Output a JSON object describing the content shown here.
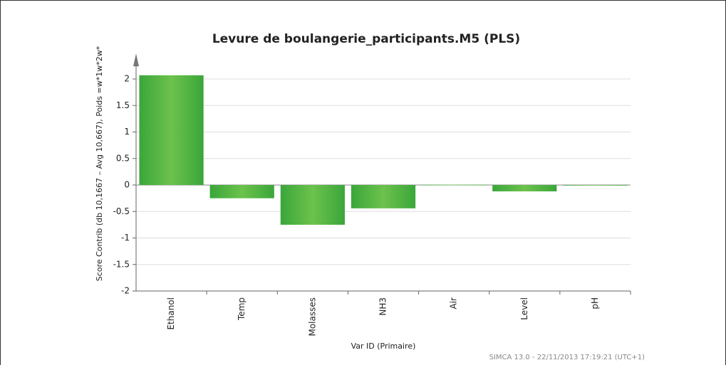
{
  "chart_data": {
    "type": "bar",
    "title": "Levure de boulangerie_participants.M5 (PLS)",
    "y_label": "Score Contrib (db 10,1667 – Avg 10,667), Poids =w*1w*2w*",
    "x_label": "Var ID (Primaire)",
    "footer": "SIMCA 13.0 - 22/11/2013 17:19:21 (UTC+1)",
    "categories": [
      "Ethanol",
      "Temp",
      "Molasses",
      "NH3",
      "Air",
      "Level",
      "pH"
    ],
    "values": [
      2.07,
      -0.25,
      -0.75,
      -0.44,
      0.005,
      -0.12,
      -0.01
    ],
    "color": "#4cb848",
    "ylim": [
      -2,
      2.4
    ],
    "yticks": [
      -2,
      -1.5,
      -1,
      -0.5,
      0,
      0.5,
      1,
      1.5,
      2
    ],
    "grid": true
  }
}
